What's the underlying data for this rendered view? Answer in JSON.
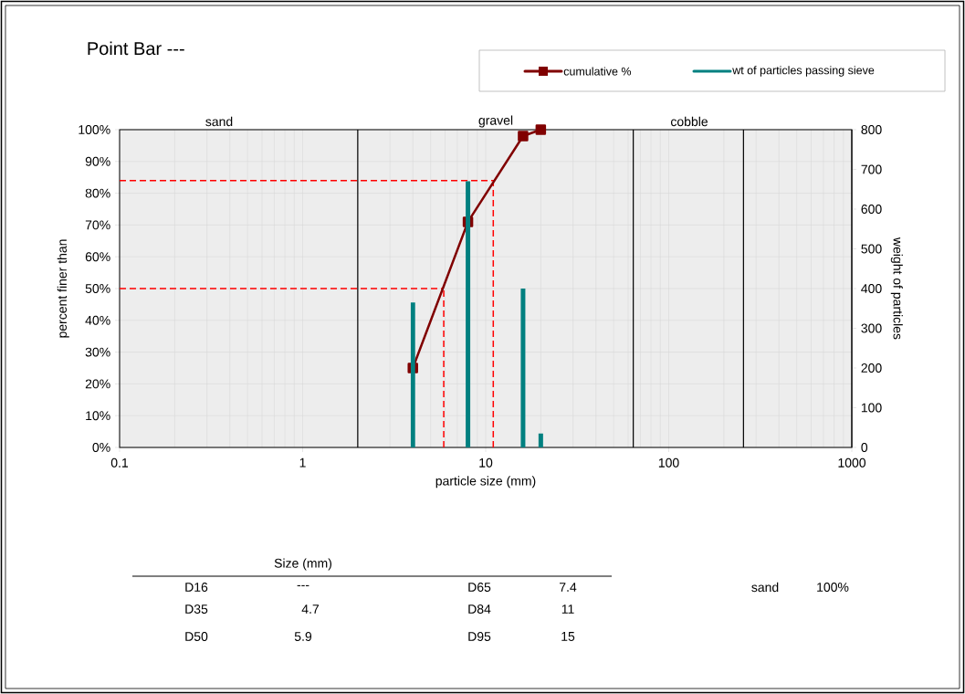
{
  "chart_data": {
    "type": "line",
    "title": "Point Bar ---",
    "xlabel": "particle size (mm)",
    "ylabel": "percent finer than",
    "y2label": "weight of particles",
    "log": "x",
    "grid": true,
    "legend": "top right",
    "xlim": [
      0.1,
      1000
    ],
    "xticks": [
      0.1,
      1,
      10,
      100,
      1000
    ],
    "ylim": [
      0,
      100
    ],
    "yticks": [
      {
        "value": 0,
        "label": "0%"
      },
      {
        "value": 10,
        "label": "10%"
      },
      {
        "value": 20,
        "label": "20%"
      },
      {
        "value": 30,
        "label": "30%"
      },
      {
        "value": 40,
        "label": "40%"
      },
      {
        "value": 50,
        "label": "50%"
      },
      {
        "value": 60,
        "label": "60%"
      },
      {
        "value": 70,
        "label": "70%"
      },
      {
        "value": 80,
        "label": "80%"
      },
      {
        "value": 90,
        "label": "90%"
      },
      {
        "value": 100,
        "label": "100%"
      }
    ],
    "y2lim": [
      0,
      800
    ],
    "y2ticks": [
      0,
      100,
      200,
      300,
      400,
      500,
      600,
      700,
      800
    ],
    "series": [
      {
        "name": "cumulative %",
        "color": "#800000",
        "marker": "square",
        "line_style": "solid",
        "x": [
          4,
          8,
          16,
          20
        ],
        "values": [
          25,
          71,
          98,
          100
        ]
      },
      {
        "name": "wt of particles passing sieve",
        "type": "bar",
        "axis": "y2",
        "color": "#008080",
        "x": [
          4,
          8,
          16,
          20
        ],
        "values": [
          365,
          670,
          400,
          35
        ]
      }
    ],
    "ref_lines": [
      {
        "axis": "x",
        "value": 2,
        "color": "#000000",
        "line_style": "solid"
      },
      {
        "axis": "x",
        "value": 64,
        "color": "#000000",
        "line_style": "solid"
      },
      {
        "axis": "x",
        "value": 256,
        "color": "#000000",
        "line_style": "solid"
      },
      {
        "axis": "y",
        "value": 84,
        "color": "#ff0000",
        "line_style": "dashed"
      },
      {
        "axis": "y",
        "value": 50,
        "color": "#ff0000",
        "line_style": "dashed"
      },
      {
        "axis": "x",
        "value": 11,
        "color": "#ff0000",
        "line_style": "dashed"
      },
      {
        "axis": "x",
        "value": 5.9,
        "color": "#ff0000",
        "line_style": "dashed"
      }
    ],
    "annotations": [
      "Size (mm)",
      "D16",
      "---",
      "D35",
      "4.7",
      "D50",
      "5.9",
      "D65",
      "7.4",
      "D84",
      "11",
      "D95",
      "15",
      "sand",
      "100%",
      "sand",
      "gravel",
      "cobble"
    ]
  }
}
